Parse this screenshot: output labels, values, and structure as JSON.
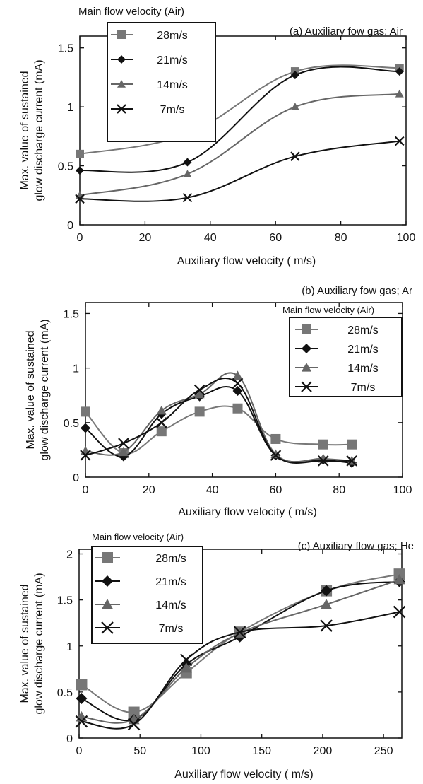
{
  "chart_data": [
    {
      "type": "line",
      "title": "(a) Auxiliary fow  gas; Air",
      "legend_title": "Main flow velocity (Air)",
      "xlabel": "Auxiliary flow velocity ( m/s)",
      "ylabel_lines": [
        "Max. value of sustained",
        "glow discharge current (mA)"
      ],
      "xlim": [
        0,
        100
      ],
      "ylim": [
        0,
        1.6
      ],
      "xticks": [
        "0",
        "20",
        "40",
        "60",
        "80",
        "100"
      ],
      "yticks": [
        "0",
        "0.5",
        "1",
        "1.5"
      ],
      "legend_position": "top-left",
      "series": [
        {
          "name": "28m/s",
          "marker": "square",
          "color": "#777777",
          "x": [
            0,
            33,
            66,
            98
          ],
          "y": [
            0.6,
            0.77,
            1.3,
            1.33
          ]
        },
        {
          "name": "21m/s",
          "marker": "diamond",
          "color": "#111111",
          "x": [
            0,
            33,
            66,
            98
          ],
          "y": [
            0.46,
            0.53,
            1.27,
            1.3
          ]
        },
        {
          "name": "14m/s",
          "marker": "triangle",
          "color": "#666666",
          "x": [
            0,
            33,
            66,
            98
          ],
          "y": [
            0.25,
            0.43,
            1.0,
            1.11
          ]
        },
        {
          "name": "7m/s",
          "marker": "x",
          "color": "#111111",
          "x": [
            0,
            33,
            66,
            98
          ],
          "y": [
            0.22,
            0.23,
            0.58,
            0.71
          ]
        }
      ]
    },
    {
      "type": "line",
      "title": "(b) Auxiliary fow  gas; Ar",
      "legend_title": "Main flow velocity (Air)",
      "xlabel": "Auxiliary flow velocity ( m/s)",
      "ylabel_lines": [
        "Max. value of sustained",
        "glow discharge current (mA)"
      ],
      "xlim": [
        0,
        100
      ],
      "ylim": [
        0,
        1.6
      ],
      "xticks": [
        "0",
        "20",
        "40",
        "60",
        "80",
        "100"
      ],
      "yticks": [
        "0",
        "0.5",
        "1",
        "1.5"
      ],
      "legend_position": "top-right",
      "series": [
        {
          "name": "28m/s",
          "marker": "square",
          "color": "#777777",
          "x": [
            0,
            12,
            24,
            36,
            48,
            60,
            75,
            84
          ],
          "y": [
            0.6,
            0.22,
            0.42,
            0.6,
            0.63,
            0.35,
            0.3,
            0.3
          ]
        },
        {
          "name": "21m/s",
          "marker": "diamond",
          "color": "#111111",
          "x": [
            0,
            12,
            24,
            36,
            48,
            60,
            75,
            84
          ],
          "y": [
            0.45,
            0.19,
            0.58,
            0.74,
            0.79,
            0.2,
            0.16,
            0.13
          ]
        },
        {
          "name": "14m/s",
          "marker": "triangle",
          "color": "#666666",
          "x": [
            0,
            12,
            24,
            36,
            48,
            60,
            75,
            84
          ],
          "y": [
            0.24,
            0.23,
            0.61,
            0.76,
            0.93,
            0.21,
            0.17,
            0.15
          ]
        },
        {
          "name": "7m/s",
          "marker": "x",
          "color": "#111111",
          "x": [
            0,
            12,
            24,
            36,
            48,
            60,
            75,
            84
          ],
          "y": [
            0.2,
            0.31,
            0.5,
            0.8,
            0.86,
            0.2,
            0.15,
            0.15
          ]
        }
      ]
    },
    {
      "type": "line",
      "title": "(c) Auxiliary flow gas; He",
      "legend_title": "Main flow velocity (Air)",
      "xlabel": "Auxiliary flow velocity ( m/s)",
      "ylabel_lines": [
        "Max. value of sustained",
        "glow discharge current (mA)"
      ],
      "xlim": [
        0,
        265
      ],
      "ylim": [
        0,
        2.05
      ],
      "xticks": [
        "0",
        "50",
        "100",
        "150",
        "200",
        "250"
      ],
      "yticks": [
        "0",
        "0.5",
        "1",
        "1.5",
        "2"
      ],
      "legend_position": "top-left",
      "series": [
        {
          "name": "28m/s",
          "marker": "square",
          "color": "#777777",
          "x": [
            2,
            45,
            88,
            132,
            203,
            263
          ],
          "y": [
            0.58,
            0.28,
            0.71,
            1.15,
            1.6,
            1.78
          ]
        },
        {
          "name": "21m/s",
          "marker": "diamond",
          "color": "#111111",
          "x": [
            2,
            45,
            88,
            132,
            203,
            263
          ],
          "y": [
            0.43,
            0.2,
            0.8,
            1.1,
            1.6,
            1.7
          ]
        },
        {
          "name": "14m/s",
          "marker": "triangle",
          "color": "#666666",
          "x": [
            2,
            45,
            88,
            132,
            203,
            263
          ],
          "y": [
            0.23,
            0.2,
            0.76,
            1.14,
            1.45,
            1.72
          ]
        },
        {
          "name": "7m/s",
          "marker": "x",
          "color": "#111111",
          "x": [
            2,
            45,
            88,
            132,
            203,
            263
          ],
          "y": [
            0.18,
            0.15,
            0.85,
            1.15,
            1.22,
            1.37
          ]
        }
      ]
    }
  ]
}
